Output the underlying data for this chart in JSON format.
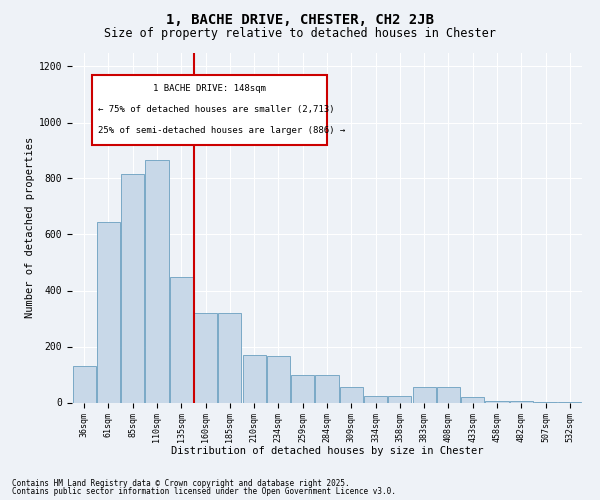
{
  "title1": "1, BACHE DRIVE, CHESTER, CH2 2JB",
  "title2": "Size of property relative to detached houses in Chester",
  "xlabel": "Distribution of detached houses by size in Chester",
  "ylabel": "Number of detached properties",
  "categories": [
    "36sqm",
    "61sqm",
    "85sqm",
    "110sqm",
    "135sqm",
    "160sqm",
    "185sqm",
    "210sqm",
    "234sqm",
    "259sqm",
    "284sqm",
    "309sqm",
    "334sqm",
    "358sqm",
    "383sqm",
    "408sqm",
    "433sqm",
    "458sqm",
    "482sqm",
    "507sqm",
    "532sqm"
  ],
  "values": [
    130,
    645,
    815,
    865,
    450,
    320,
    320,
    170,
    165,
    100,
    100,
    55,
    25,
    25,
    55,
    55,
    20,
    5,
    5,
    3,
    3
  ],
  "bar_color": "#c8d8e8",
  "bar_edge_color": "#6a9fc0",
  "vline_color": "#cc0000",
  "annotation_title": "1 BACHE DRIVE: 148sqm",
  "annotation_line1": "← 75% of detached houses are smaller (2,713)",
  "annotation_line2": "25% of semi-detached houses are larger (886) →",
  "annotation_box_color": "#cc0000",
  "annotation_bg": "#ffffff",
  "ylim": [
    0,
    1250
  ],
  "yticks": [
    0,
    200,
    400,
    600,
    800,
    1000,
    1200
  ],
  "footnote1": "Contains HM Land Registry data © Crown copyright and database right 2025.",
  "footnote2": "Contains public sector information licensed under the Open Government Licence v3.0.",
  "bg_color": "#eef2f7"
}
